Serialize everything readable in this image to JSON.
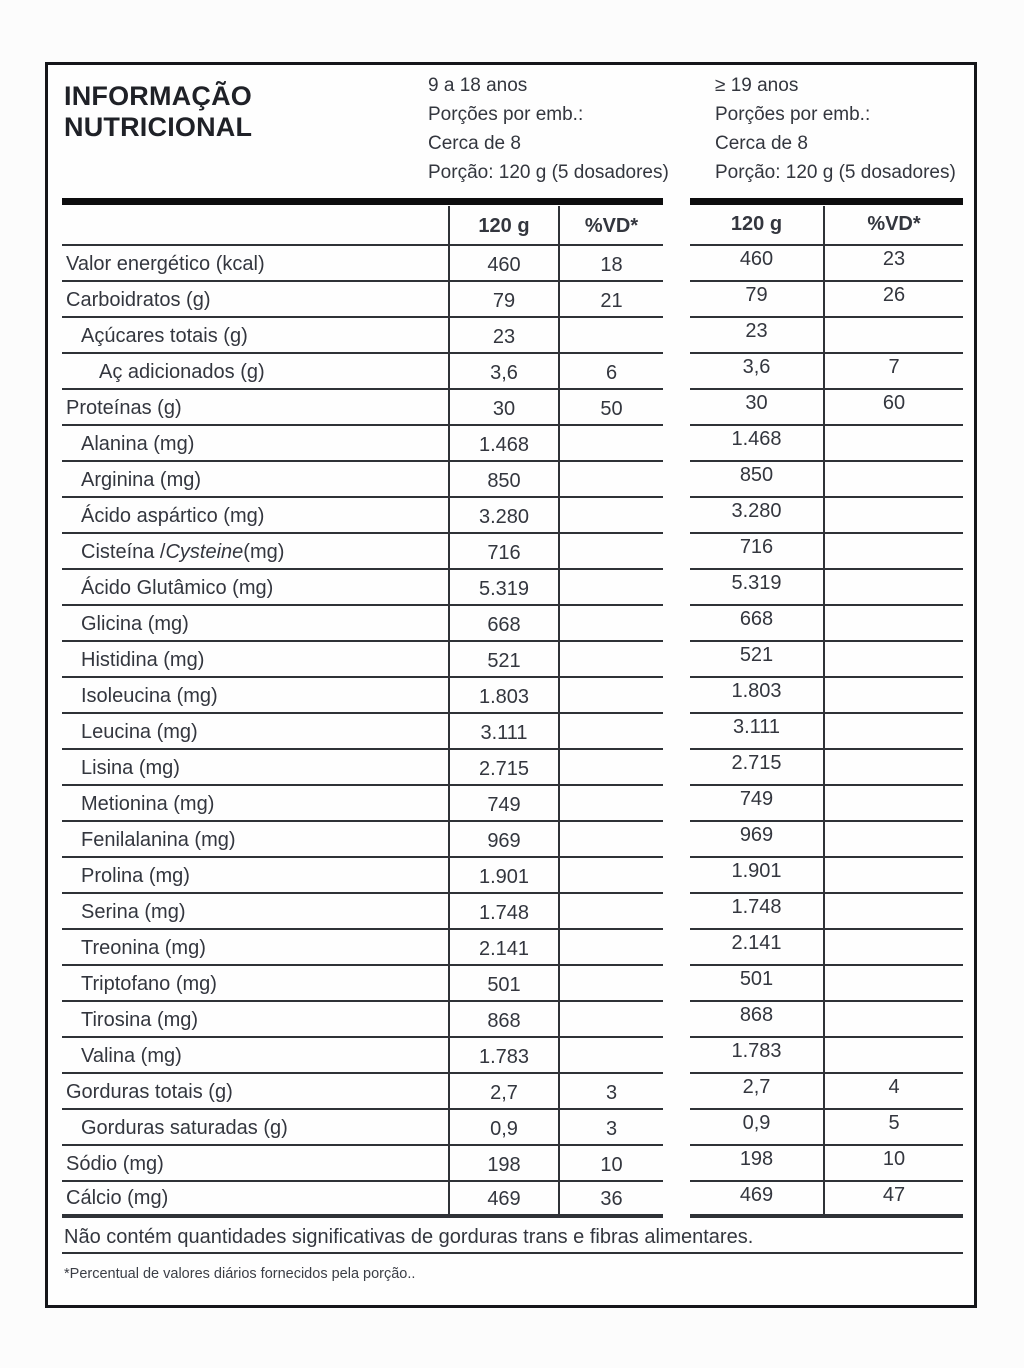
{
  "title": {
    "line1": "INFORMAÇÃO",
    "line2": "NUTRICIONAL"
  },
  "groups": [
    {
      "age_range": "9 a 18 anos",
      "servings_label": "Porções por emb.:",
      "servings_value": "Cerca de 8",
      "portion": "Porção: 120 g (5 dosadores)",
      "col_amount": "120 g",
      "col_dv": "%VD*"
    },
    {
      "age_range": "≥ 19 anos",
      "servings_label": "Porções por emb.:",
      "servings_value": "Cerca de 8",
      "portion": "Porção: 120 g (5 dosadores)",
      "col_amount": "120 g",
      "col_dv": "%VD*"
    }
  ],
  "rows": [
    {
      "label_parts": [
        [
          "Valor energético (kcal)",
          false
        ]
      ],
      "indent": 0,
      "amount_9_18": "460",
      "dv_9_18": "18",
      "amount_19plus": "460",
      "dv_19plus": "23"
    },
    {
      "label_parts": [
        [
          "Carboidratos (g)",
          false
        ]
      ],
      "indent": 0,
      "amount_9_18": "79",
      "dv_9_18": "21",
      "amount_19plus": "79",
      "dv_19plus": "26"
    },
    {
      "label_parts": [
        [
          "Açúcares totais (g)",
          false
        ]
      ],
      "indent": 1,
      "amount_9_18": "23",
      "dv_9_18": "",
      "amount_19plus": "23",
      "dv_19plus": ""
    },
    {
      "label_parts": [
        [
          "Aç adicionados (g)",
          false
        ]
      ],
      "indent": 2,
      "amount_9_18": "3,6",
      "dv_9_18": "6",
      "amount_19plus": "3,6",
      "dv_19plus": "7"
    },
    {
      "label_parts": [
        [
          "Proteínas (g)",
          false
        ]
      ],
      "indent": 0,
      "amount_9_18": "30",
      "dv_9_18": "50",
      "amount_19plus": "30",
      "dv_19plus": "60"
    },
    {
      "label_parts": [
        [
          "Alanina (mg)",
          false
        ]
      ],
      "indent": 1,
      "amount_9_18": "1.468",
      "dv_9_18": "",
      "amount_19plus": "1.468",
      "dv_19plus": ""
    },
    {
      "label_parts": [
        [
          "Arginina (mg)",
          false
        ]
      ],
      "indent": 1,
      "amount_9_18": "850",
      "dv_9_18": "",
      "amount_19plus": "850",
      "dv_19plus": ""
    },
    {
      "label_parts": [
        [
          "Ácido aspártico (mg)",
          false
        ]
      ],
      "indent": 1,
      "amount_9_18": "3.280",
      "dv_9_18": "",
      "amount_19plus": "3.280",
      "dv_19plus": ""
    },
    {
      "label_parts": [
        [
          "Cisteína / ",
          false
        ],
        [
          "Cysteine",
          true
        ],
        [
          " (mg)",
          false
        ]
      ],
      "indent": 1,
      "amount_9_18": "716",
      "dv_9_18": "",
      "amount_19plus": "716",
      "dv_19plus": ""
    },
    {
      "label_parts": [
        [
          "Ácido Glutâmico (mg)",
          false
        ]
      ],
      "indent": 1,
      "amount_9_18": "5.319",
      "dv_9_18": "",
      "amount_19plus": "5.319",
      "dv_19plus": ""
    },
    {
      "label_parts": [
        [
          "Glicina (mg)",
          false
        ]
      ],
      "indent": 1,
      "amount_9_18": "668",
      "dv_9_18": "",
      "amount_19plus": "668",
      "dv_19plus": ""
    },
    {
      "label_parts": [
        [
          "Histidina (mg)",
          false
        ]
      ],
      "indent": 1,
      "amount_9_18": "521",
      "dv_9_18": "",
      "amount_19plus": "521",
      "dv_19plus": ""
    },
    {
      "label_parts": [
        [
          "Isoleucina (mg)",
          false
        ]
      ],
      "indent": 1,
      "amount_9_18": "1.803",
      "dv_9_18": "",
      "amount_19plus": "1.803",
      "dv_19plus": ""
    },
    {
      "label_parts": [
        [
          "Leucina (mg)",
          false
        ]
      ],
      "indent": 1,
      "amount_9_18": "3.111",
      "dv_9_18": "",
      "amount_19plus": "3.111",
      "dv_19plus": ""
    },
    {
      "label_parts": [
        [
          "Lisina (mg)",
          false
        ]
      ],
      "indent": 1,
      "amount_9_18": "2.715",
      "dv_9_18": "",
      "amount_19plus": "2.715",
      "dv_19plus": ""
    },
    {
      "label_parts": [
        [
          "Metionina (mg)",
          false
        ]
      ],
      "indent": 1,
      "amount_9_18": "749",
      "dv_9_18": "",
      "amount_19plus": "749",
      "dv_19plus": ""
    },
    {
      "label_parts": [
        [
          "Fenilalanina (mg)",
          false
        ]
      ],
      "indent": 1,
      "amount_9_18": "969",
      "dv_9_18": "",
      "amount_19plus": "969",
      "dv_19plus": ""
    },
    {
      "label_parts": [
        [
          "Prolina (mg)",
          false
        ]
      ],
      "indent": 1,
      "amount_9_18": "1.901",
      "dv_9_18": "",
      "amount_19plus": "1.901",
      "dv_19plus": ""
    },
    {
      "label_parts": [
        [
          "Serina (mg)",
          false
        ]
      ],
      "indent": 1,
      "amount_9_18": "1.748",
      "dv_9_18": "",
      "amount_19plus": "1.748",
      "dv_19plus": ""
    },
    {
      "label_parts": [
        [
          "Treonina (mg)",
          false
        ]
      ],
      "indent": 1,
      "amount_9_18": "2.141",
      "dv_9_18": "",
      "amount_19plus": "2.141",
      "dv_19plus": ""
    },
    {
      "label_parts": [
        [
          "Triptofano (mg)",
          false
        ]
      ],
      "indent": 1,
      "amount_9_18": "501",
      "dv_9_18": "",
      "amount_19plus": "501",
      "dv_19plus": ""
    },
    {
      "label_parts": [
        [
          "Tirosina (mg)",
          false
        ]
      ],
      "indent": 1,
      "amount_9_18": "868",
      "dv_9_18": "",
      "amount_19plus": "868",
      "dv_19plus": ""
    },
    {
      "label_parts": [
        [
          "Valina (mg)",
          false
        ]
      ],
      "indent": 1,
      "amount_9_18": "1.783",
      "dv_9_18": "",
      "amount_19plus": "1.783",
      "dv_19plus": ""
    },
    {
      "label_parts": [
        [
          "Gorduras totais (g)",
          false
        ]
      ],
      "indent": 0,
      "amount_9_18": "2,7",
      "dv_9_18": "3",
      "amount_19plus": "2,7",
      "dv_19plus": "4"
    },
    {
      "label_parts": [
        [
          "Gorduras saturadas (g)",
          false
        ]
      ],
      "indent": 1,
      "amount_9_18": "0,9",
      "dv_9_18": "3",
      "amount_19plus": "0,9",
      "dv_19plus": "5"
    },
    {
      "label_parts": [
        [
          "Sódio (mg)",
          false
        ]
      ],
      "indent": 0,
      "amount_9_18": "198",
      "dv_9_18": "10",
      "amount_19plus": "198",
      "dv_19plus": "10"
    },
    {
      "label_parts": [
        [
          "Cálcio (mg)",
          false
        ]
      ],
      "indent": 0,
      "amount_9_18": "469",
      "dv_9_18": "36",
      "amount_19plus": "469",
      "dv_19plus": "47"
    }
  ],
  "footnotes": {
    "no_significant": "Não contém quantidades significativas de gorduras trans e fibras alimentares.",
    "dv_note": "*Percentual de valores diários fornecidos pela porção.."
  }
}
